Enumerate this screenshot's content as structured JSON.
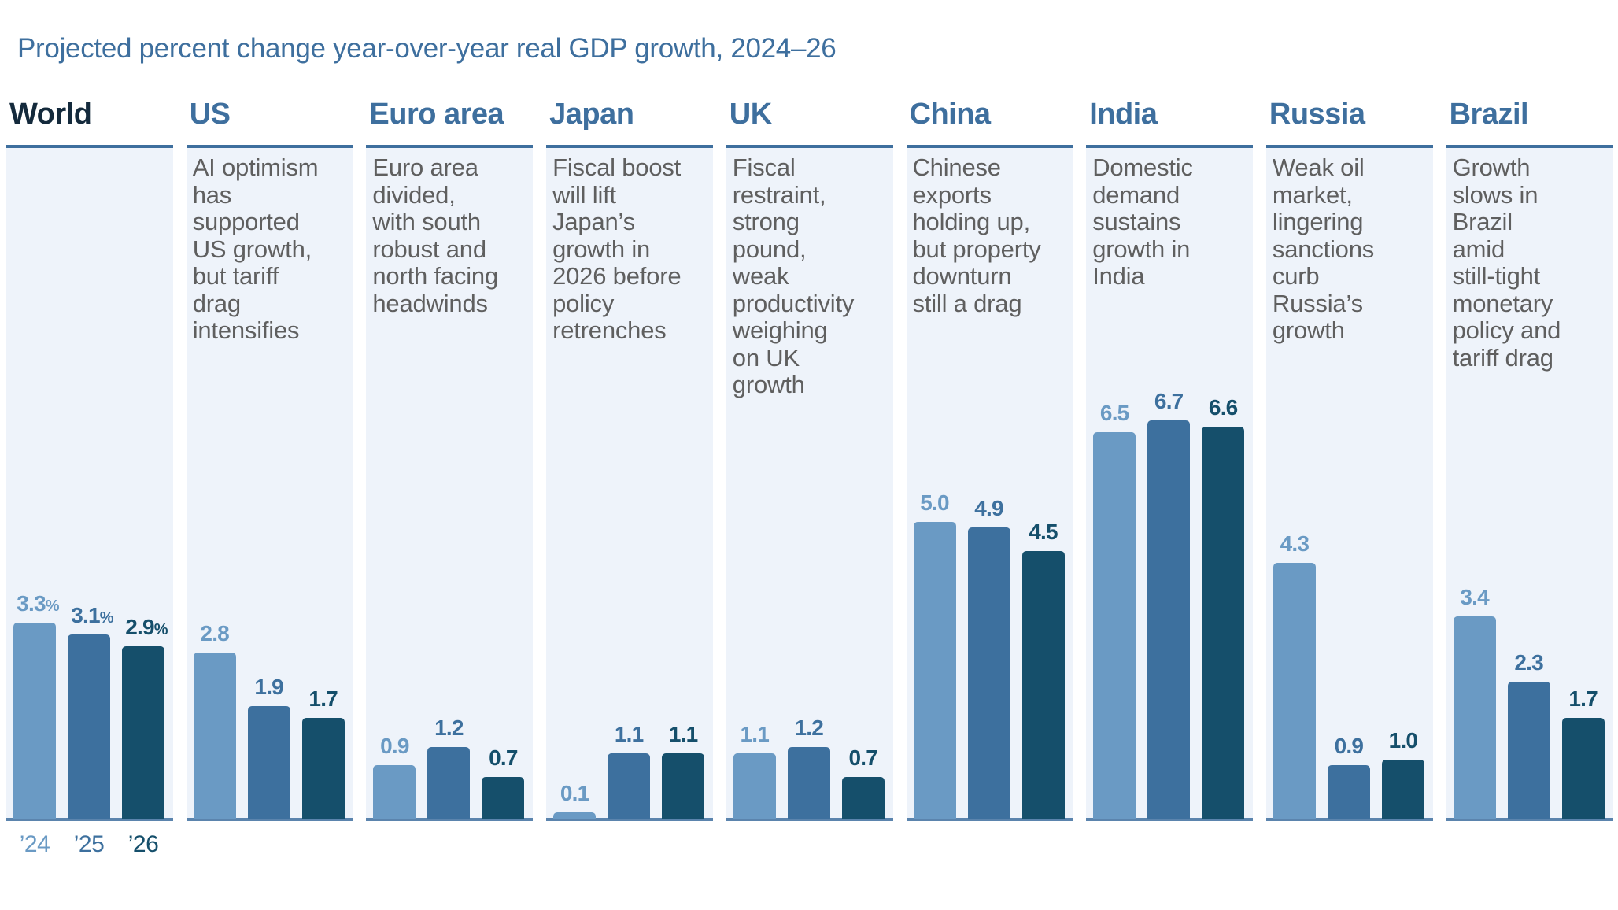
{
  "chart_data": {
    "type": "bar",
    "title": "Projected percent change year-over-year real GDP growth, 2024–26",
    "categories": [
      "’24",
      "’25",
      "’26"
    ],
    "unit_suffix": "%",
    "colors": {
      "’24": "#6a9ac4",
      "’25": "#3d709e",
      "’26": "#154f6b"
    },
    "panel_background": "#eef3fa",
    "header_color": "#3e6f9e",
    "world_header_color": "#142a3c",
    "ylim": [
      0,
      7
    ],
    "grid": false,
    "panels": [
      {
        "name": "World",
        "description": "",
        "values": [
          3.3,
          3.1,
          2.9
        ],
        "labels": [
          "3.3",
          "3.1",
          "2.9"
        ]
      },
      {
        "name": "US",
        "description": "AI optimism\nhas\nsupported\nUS growth,\nbut tariff\ndrag\nintensifies",
        "values": [
          2.8,
          1.9,
          1.7
        ],
        "labels": [
          "2.8",
          "1.9",
          "1.7"
        ]
      },
      {
        "name": "Euro area",
        "description": "Euro area\ndivided,\nwith south\nrobust and\nnorth facing\nheadwinds",
        "values": [
          0.9,
          1.2,
          0.7
        ],
        "labels": [
          "0.9",
          "1.2",
          "0.7"
        ]
      },
      {
        "name": "Japan",
        "description": "Fiscal boost\nwill lift\nJapan’s\ngrowth in\n2026 before\npolicy\nretrenches",
        "values": [
          0.1,
          1.1,
          1.1
        ],
        "labels": [
          "0.1",
          "1.1",
          "1.1"
        ]
      },
      {
        "name": "UK",
        "description": "Fiscal\nrestraint,\nstrong\npound,\nweak\nproductivity\nweighing\non UK\ngrowth",
        "values": [
          1.1,
          1.2,
          0.7
        ],
        "labels": [
          "1.1",
          "1.2",
          "0.7"
        ]
      },
      {
        "name": "China",
        "description": "Chinese\nexports\nholding up,\nbut property\ndownturn\nstill a drag",
        "values": [
          5.0,
          4.9,
          4.5
        ],
        "labels": [
          "5.0",
          "4.9",
          "4.5"
        ]
      },
      {
        "name": "India",
        "description": "Domestic\ndemand\nsustains\ngrowth in\nIndia",
        "values": [
          6.5,
          6.7,
          6.6
        ],
        "labels": [
          "6.5",
          "6.7",
          "6.6"
        ]
      },
      {
        "name": "Russia",
        "description": "Weak oil\nmarket,\nlingering\nsanctions\ncurb\nRussia’s\ngrowth",
        "values": [
          4.3,
          0.9,
          1.0
        ],
        "labels": [
          "4.3",
          "0.9",
          "1.0"
        ]
      },
      {
        "name": "Brazil",
        "description": "Growth\nslows in\nBrazil\namid\nstill-tight\nmonetary\npolicy and\ntariff drag",
        "values": [
          3.4,
          2.3,
          1.7
        ],
        "labels": [
          "3.4",
          "2.3",
          "1.7"
        ]
      }
    ]
  }
}
